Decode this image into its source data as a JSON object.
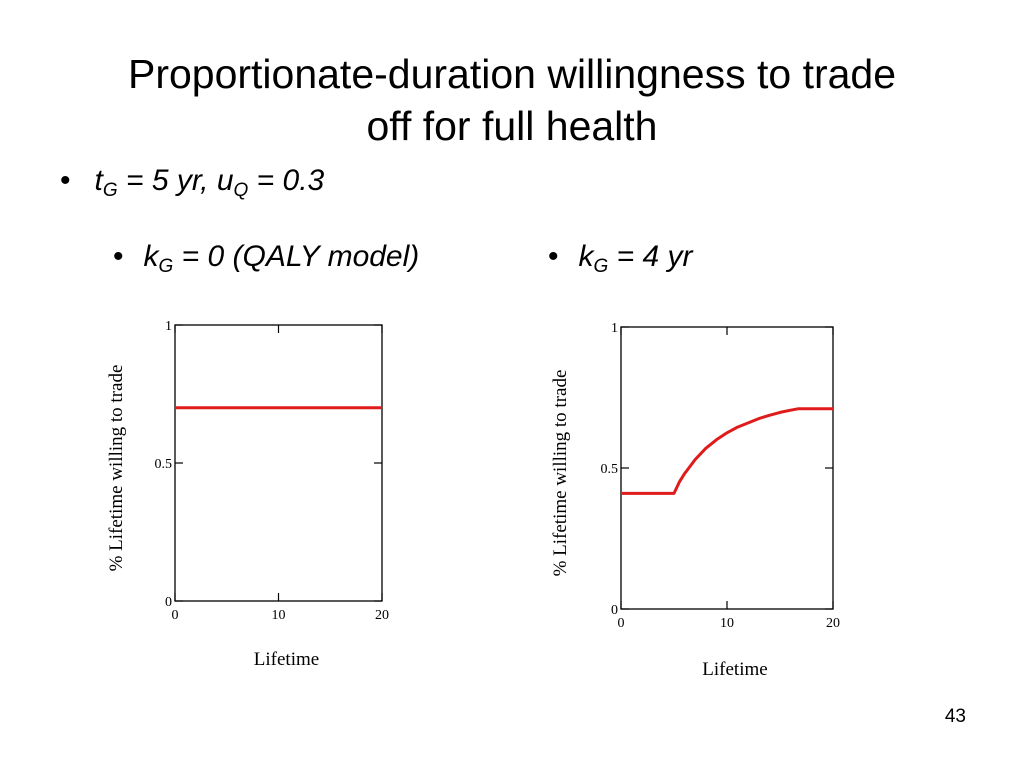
{
  "slide": {
    "title_line1": "Proportionate-duration willingness to trade",
    "title_line2": "off for full health",
    "bullet_dot": "•",
    "param_bullet": {
      "t": "t",
      "t_sub": "G",
      "t_rest": " = 5 yr, ",
      "u": "u",
      "u_sub": "Q",
      "u_rest": " = 0.3"
    },
    "left_bullet": {
      "k": "k",
      "k_sub": "G",
      "rest": " = 0 (QALY model)"
    },
    "right_bullet": {
      "k": "k",
      "k_sub": "G",
      "rest": " = 4 yr"
    },
    "page_number": "43"
  },
  "chart_data": [
    {
      "type": "line",
      "xlabel": "Lifetime",
      "ylabel": "% Lifetime willing to trade",
      "xlim": [
        0,
        20
      ],
      "ylim": [
        0,
        1
      ],
      "xticks": [
        0,
        10,
        20
      ],
      "xtick_labels": [
        "0",
        "10",
        "20"
      ],
      "yticks": [
        0,
        0.5,
        1
      ],
      "ytick_labels": [
        "0",
        "0.5",
        "1"
      ],
      "grid": false,
      "series": [
        {
          "color": "#e01b1b",
          "x": [
            0,
            20
          ],
          "y": [
            0.7,
            0.7
          ]
        }
      ]
    },
    {
      "type": "line",
      "xlabel": "Lifetime",
      "ylabel": "% Lifetime willing to trade",
      "xlim": [
        0,
        20
      ],
      "ylim": [
        0,
        1
      ],
      "xticks": [
        0,
        10,
        20
      ],
      "xtick_labels": [
        "0",
        "10",
        "20"
      ],
      "yticks": [
        0,
        0.5,
        1
      ],
      "ytick_labels": [
        "0",
        "0.5",
        "1"
      ],
      "grid": false,
      "series": [
        {
          "color": "#e01b1b",
          "x": [
            0,
            5,
            5.5,
            6,
            7,
            8,
            9,
            10,
            11,
            12,
            13,
            14,
            15,
            16,
            16.7,
            20
          ],
          "y": [
            0.41,
            0.41,
            0.45,
            0.48,
            0.53,
            0.57,
            0.6,
            0.625,
            0.645,
            0.66,
            0.675,
            0.687,
            0.697,
            0.705,
            0.71,
            0.71
          ]
        }
      ]
    }
  ]
}
